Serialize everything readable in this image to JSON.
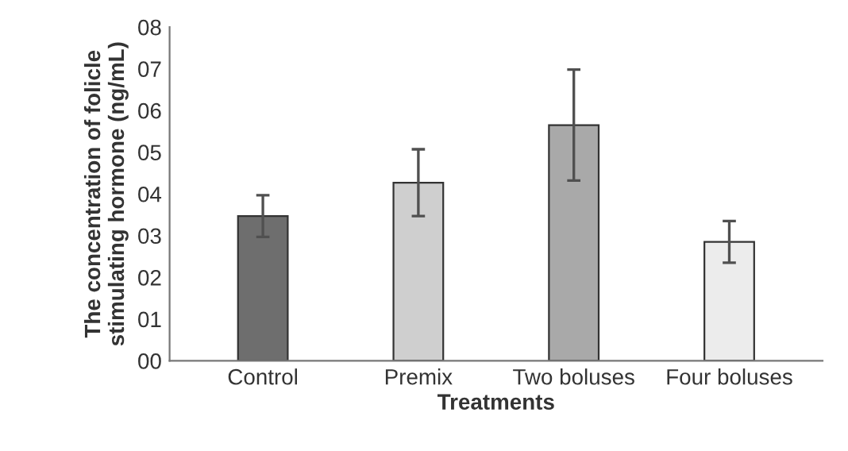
{
  "chart_data": {
    "type": "bar",
    "xlabel": "Treatments",
    "ylabel": "The concentration of folicle\nstimulating hormone (ng/mL)",
    "categories": [
      "Control",
      "Premix",
      "Two boluses",
      "Four boluses"
    ],
    "values": [
      3.47,
      4.27,
      5.65,
      2.85
    ],
    "errors": [
      0.5,
      0.8,
      1.33,
      0.5
    ],
    "colors": [
      "#6e6e6e",
      "#cfcfcf",
      "#a9a9a9",
      "#ececec"
    ],
    "ylim": [
      0,
      8
    ],
    "yticks": [
      {
        "value": 0,
        "label": "00"
      },
      {
        "value": 1,
        "label": "01"
      },
      {
        "value": 2,
        "label": "02"
      },
      {
        "value": 3,
        "label": "03"
      },
      {
        "value": 4,
        "label": "04"
      },
      {
        "value": 5,
        "label": "05"
      },
      {
        "value": 6,
        "label": "06"
      },
      {
        "value": 7,
        "label": "07"
      },
      {
        "value": 8,
        "label": "08"
      }
    ],
    "grid": false,
    "legend": false
  }
}
